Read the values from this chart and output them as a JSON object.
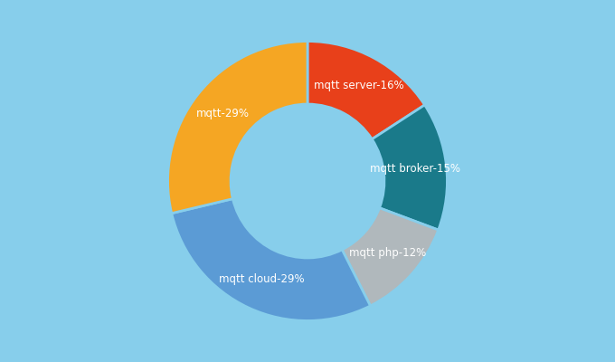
{
  "labels": [
    "mqtt server",
    "mqtt broker",
    "mqtt php",
    "mqtt cloud",
    "mqtt"
  ],
  "values": [
    16,
    15,
    12,
    29,
    29
  ],
  "colors": [
    "#E8401A",
    "#1A7A8A",
    "#B0B8BC",
    "#5B9BD5",
    "#F5A623"
  ],
  "background_color": "#87CEEB",
  "text_color": "#FFFFFF",
  "donut_width": 0.45
}
